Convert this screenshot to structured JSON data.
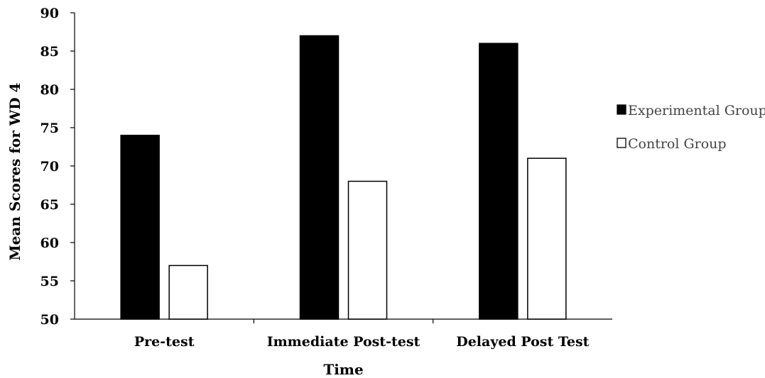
{
  "chart_data": {
    "type": "bar",
    "title": "",
    "xlabel": "Time",
    "ylabel": "Mean Scores for WD 4",
    "categories": [
      "Pre-test",
      "Immediate Post-test",
      "Delayed Post Test"
    ],
    "series": [
      {
        "name": "Experimental Group",
        "values": [
          74,
          87,
          86
        ],
        "color": "#000000"
      },
      {
        "name": "Control Group",
        "values": [
          57,
          68,
          71
        ],
        "color": "#ffffff"
      }
    ],
    "ylim": [
      50,
      90
    ],
    "yticks": [
      50,
      55,
      60,
      65,
      70,
      75,
      80,
      85,
      90
    ],
    "grid": false,
    "legend_position": "right"
  }
}
